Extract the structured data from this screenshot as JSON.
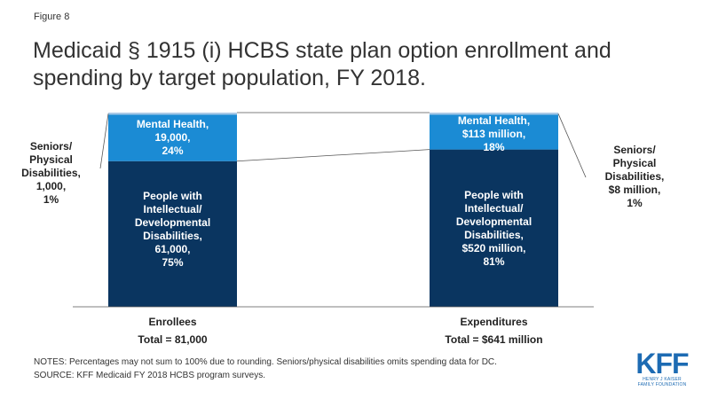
{
  "figure_label": "Figure 8",
  "title": "Medicaid § 1915 (i) HCBS state plan option enrollment and spending by target population, FY 2018.",
  "colors": {
    "seniors": "#a8c8e6",
    "mental_health": "#1b8bd4",
    "idd": "#0a3560",
    "connector": "#555555"
  },
  "bars": {
    "enrollees": {
      "category": "Enrollees",
      "total": "Total = 81,000",
      "seniors_label": [
        "Seniors/",
        "Physical",
        "Disabilities,",
        "1,000,",
        "1%"
      ],
      "mh_label": [
        "Mental Health,",
        "19,000,",
        "24%"
      ],
      "idd_label": [
        "People with",
        "Intellectual/",
        "Developmental",
        "Disabilities,",
        "61,000,",
        "75%"
      ]
    },
    "expenditures": {
      "category": "Expenditures",
      "total": "Total = $641 million",
      "seniors_label": [
        "Seniors/",
        "Physical",
        "Disabilities,",
        "$8 million,",
        "1%"
      ],
      "mh_label": [
        "Mental Health,",
        "$113 million,",
        "18%"
      ],
      "idd_label": [
        "People with",
        "Intellectual/",
        "Developmental",
        "Disabilities,",
        "$520 million,",
        "81%"
      ]
    }
  },
  "chart_data": {
    "type": "bar",
    "stacked": true,
    "percent_stacked": true,
    "categories": [
      "Enrollees",
      "Expenditures"
    ],
    "series": [
      {
        "name": "People with Intellectual/ Developmental Disabilities",
        "values": [
          75,
          81
        ]
      },
      {
        "name": "Mental Health",
        "values": [
          24,
          18
        ]
      },
      {
        "name": "Seniors/ Physical Disabilities",
        "values": [
          1,
          1
        ]
      }
    ],
    "ylim": [
      0,
      100
    ]
  },
  "notes": [
    "NOTES: Percentages may not sum to 100% due to rounding. Seniors/physical disabilities omits spending data for DC.",
    "SOURCE: KFF Medicaid FY 2018 HCBS program surveys."
  ],
  "logo": {
    "text": "KFF",
    "subtext": [
      "HENRY J KAISER",
      "FAMILY FOUNDATION"
    ]
  }
}
